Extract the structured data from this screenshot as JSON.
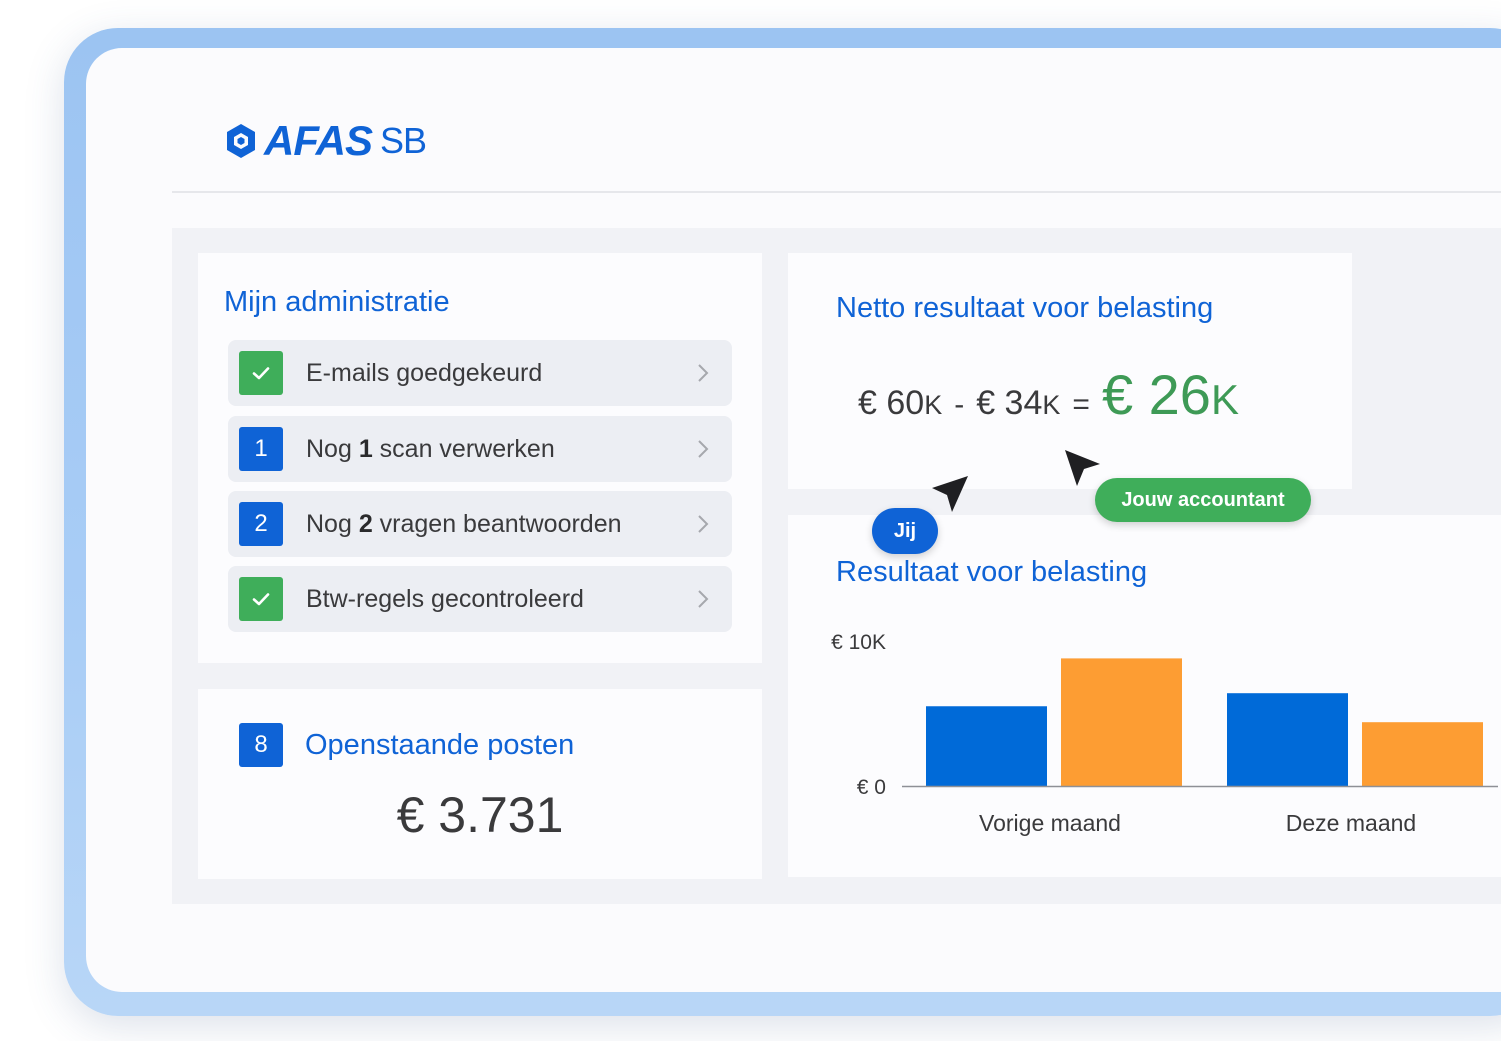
{
  "app": {
    "brand": "AFAS",
    "brand_suffix": "SB"
  },
  "admin": {
    "title": "Mijn administratie",
    "tasks": [
      {
        "status": "check",
        "badge": "",
        "prefix": "E-mails goedgekeurd",
        "bold": "",
        "suffix": ""
      },
      {
        "status": "count",
        "badge": "1",
        "prefix": "Nog ",
        "bold": "1",
        "suffix": " scan verwerken"
      },
      {
        "status": "count",
        "badge": "2",
        "prefix": "Nog ",
        "bold": "2",
        "suffix": " vragen beantwoorden"
      },
      {
        "status": "check",
        "badge": "",
        "prefix": "Btw-regels gecontroleerd",
        "bold": "",
        "suffix": ""
      }
    ]
  },
  "open_items": {
    "badge": "8",
    "title": "Openstaande posten",
    "amount": "€ 3.731"
  },
  "netto": {
    "title": "Netto resultaat voor belasting",
    "revenue": "€ 60",
    "revenue_unit": "K",
    "operator_minus": "-",
    "costs": "€ 34",
    "costs_unit": "K",
    "operator_equals": "=",
    "result": "€ 26",
    "result_unit": "K"
  },
  "collaborators": {
    "you": "Jij",
    "accountant": "Jouw accountant"
  },
  "colors": {
    "primary": "#0f63d6",
    "success": "#3fae5a",
    "result_green": "#3e9a56",
    "bar_orange": "#fd9d33",
    "bar_blue": "#006ad8"
  },
  "chart_data": {
    "type": "bar",
    "title": "Resultaat voor belasting",
    "categories": [
      "Vorige maand",
      "Deze maand"
    ],
    "series": [
      {
        "color": "#006ad8",
        "values": [
          5.5,
          6.4
        ]
      },
      {
        "color": "#fd9d33",
        "values": [
          8.8,
          4.4
        ]
      }
    ],
    "ylim": [
      0,
      10
    ],
    "yticks": [
      {
        "value": 10,
        "label": "€ 10K"
      },
      {
        "value": 0,
        "label": "€ 0"
      }
    ],
    "grid": false
  }
}
